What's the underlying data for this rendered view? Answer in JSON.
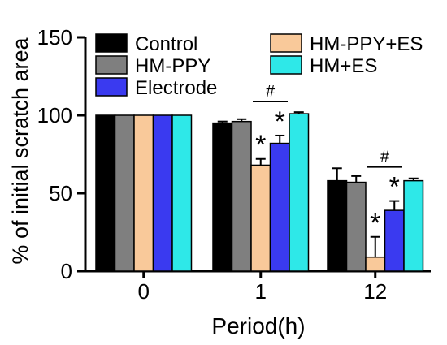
{
  "chart_data": {
    "type": "bar",
    "title": "",
    "xlabel": "Period(h)",
    "ylabel": "% of initial scratch area",
    "ylim": [
      0,
      150
    ],
    "yticks": [
      "0",
      "50",
      "100",
      "150"
    ],
    "categories": [
      "0",
      "1",
      "12"
    ],
    "grid": false,
    "legend_position": "top",
    "series": [
      {
        "name": "Control",
        "color": "#000000",
        "values": [
          100,
          95,
          58
        ],
        "errors": [
          0,
          1,
          8
        ]
      },
      {
        "name": "HM-PPY",
        "color": "#7f7f7f",
        "values": [
          100,
          96,
          57
        ],
        "errors": [
          0,
          1.5,
          4
        ]
      },
      {
        "name": "HM-PPY+ES",
        "color": "#f9c99a",
        "values": [
          100,
          68,
          9
        ],
        "errors": [
          0,
          4,
          13
        ]
      },
      {
        "name": "Electrode",
        "color": "#3a3af0",
        "values": [
          100,
          82,
          39
        ],
        "errors": [
          0,
          5,
          6
        ]
      },
      {
        "name": "HM+ES",
        "color": "#2ee8e8",
        "values": [
          100,
          101,
          58
        ],
        "errors": [
          0,
          1,
          1.5
        ]
      }
    ],
    "annotations": [
      {
        "category": "1",
        "series": "HM-PPY+ES",
        "text": "*"
      },
      {
        "category": "1",
        "series": "Electrode",
        "text": "*"
      },
      {
        "category": "12",
        "series": "HM-PPY+ES",
        "text": "*"
      },
      {
        "category": "12",
        "series": "Electrode",
        "text": "*"
      },
      {
        "category": "1",
        "between": [
          "HM-PPY+ES",
          "Electrode"
        ],
        "text": "#"
      },
      {
        "category": "12",
        "between": [
          "HM-PPY+ES",
          "Electrode"
        ],
        "text": "#"
      }
    ],
    "legend_order": [
      "Control",
      "HM-PPY",
      "Electrode",
      "HM-PPY+ES",
      "HM+ES"
    ]
  }
}
